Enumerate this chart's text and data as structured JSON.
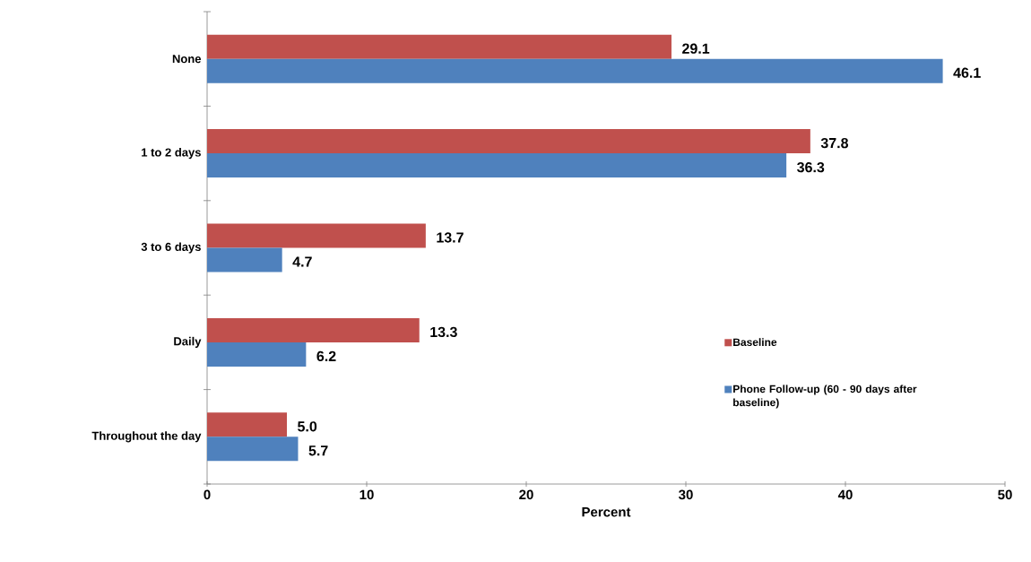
{
  "chart_data": {
    "type": "bar",
    "orientation": "horizontal",
    "xlabel": "Percent",
    "categories": [
      "None",
      "1 to 2 days",
      "3 to 6 days",
      "Daily",
      "Throughout the day"
    ],
    "series": [
      {
        "name": "Baseline",
        "color": "#c0504d",
        "values": [
          29.1,
          37.8,
          13.7,
          13.3,
          5.0
        ],
        "value_labels": [
          "29.1",
          "37.8",
          "13.7",
          "13.3",
          "5.0"
        ]
      },
      {
        "name": "Phone Follow-up (60 - 90 days after baseline)",
        "color": "#4f81bd",
        "values": [
          46.1,
          36.3,
          4.7,
          6.2,
          5.7
        ],
        "value_labels": [
          "46.1",
          "36.3",
          "4.7",
          "6.2",
          "5.7"
        ]
      }
    ],
    "xlim": [
      0,
      50
    ],
    "xticks": [
      0,
      10,
      20,
      30,
      40,
      50
    ],
    "grid": false,
    "legend": "right"
  }
}
